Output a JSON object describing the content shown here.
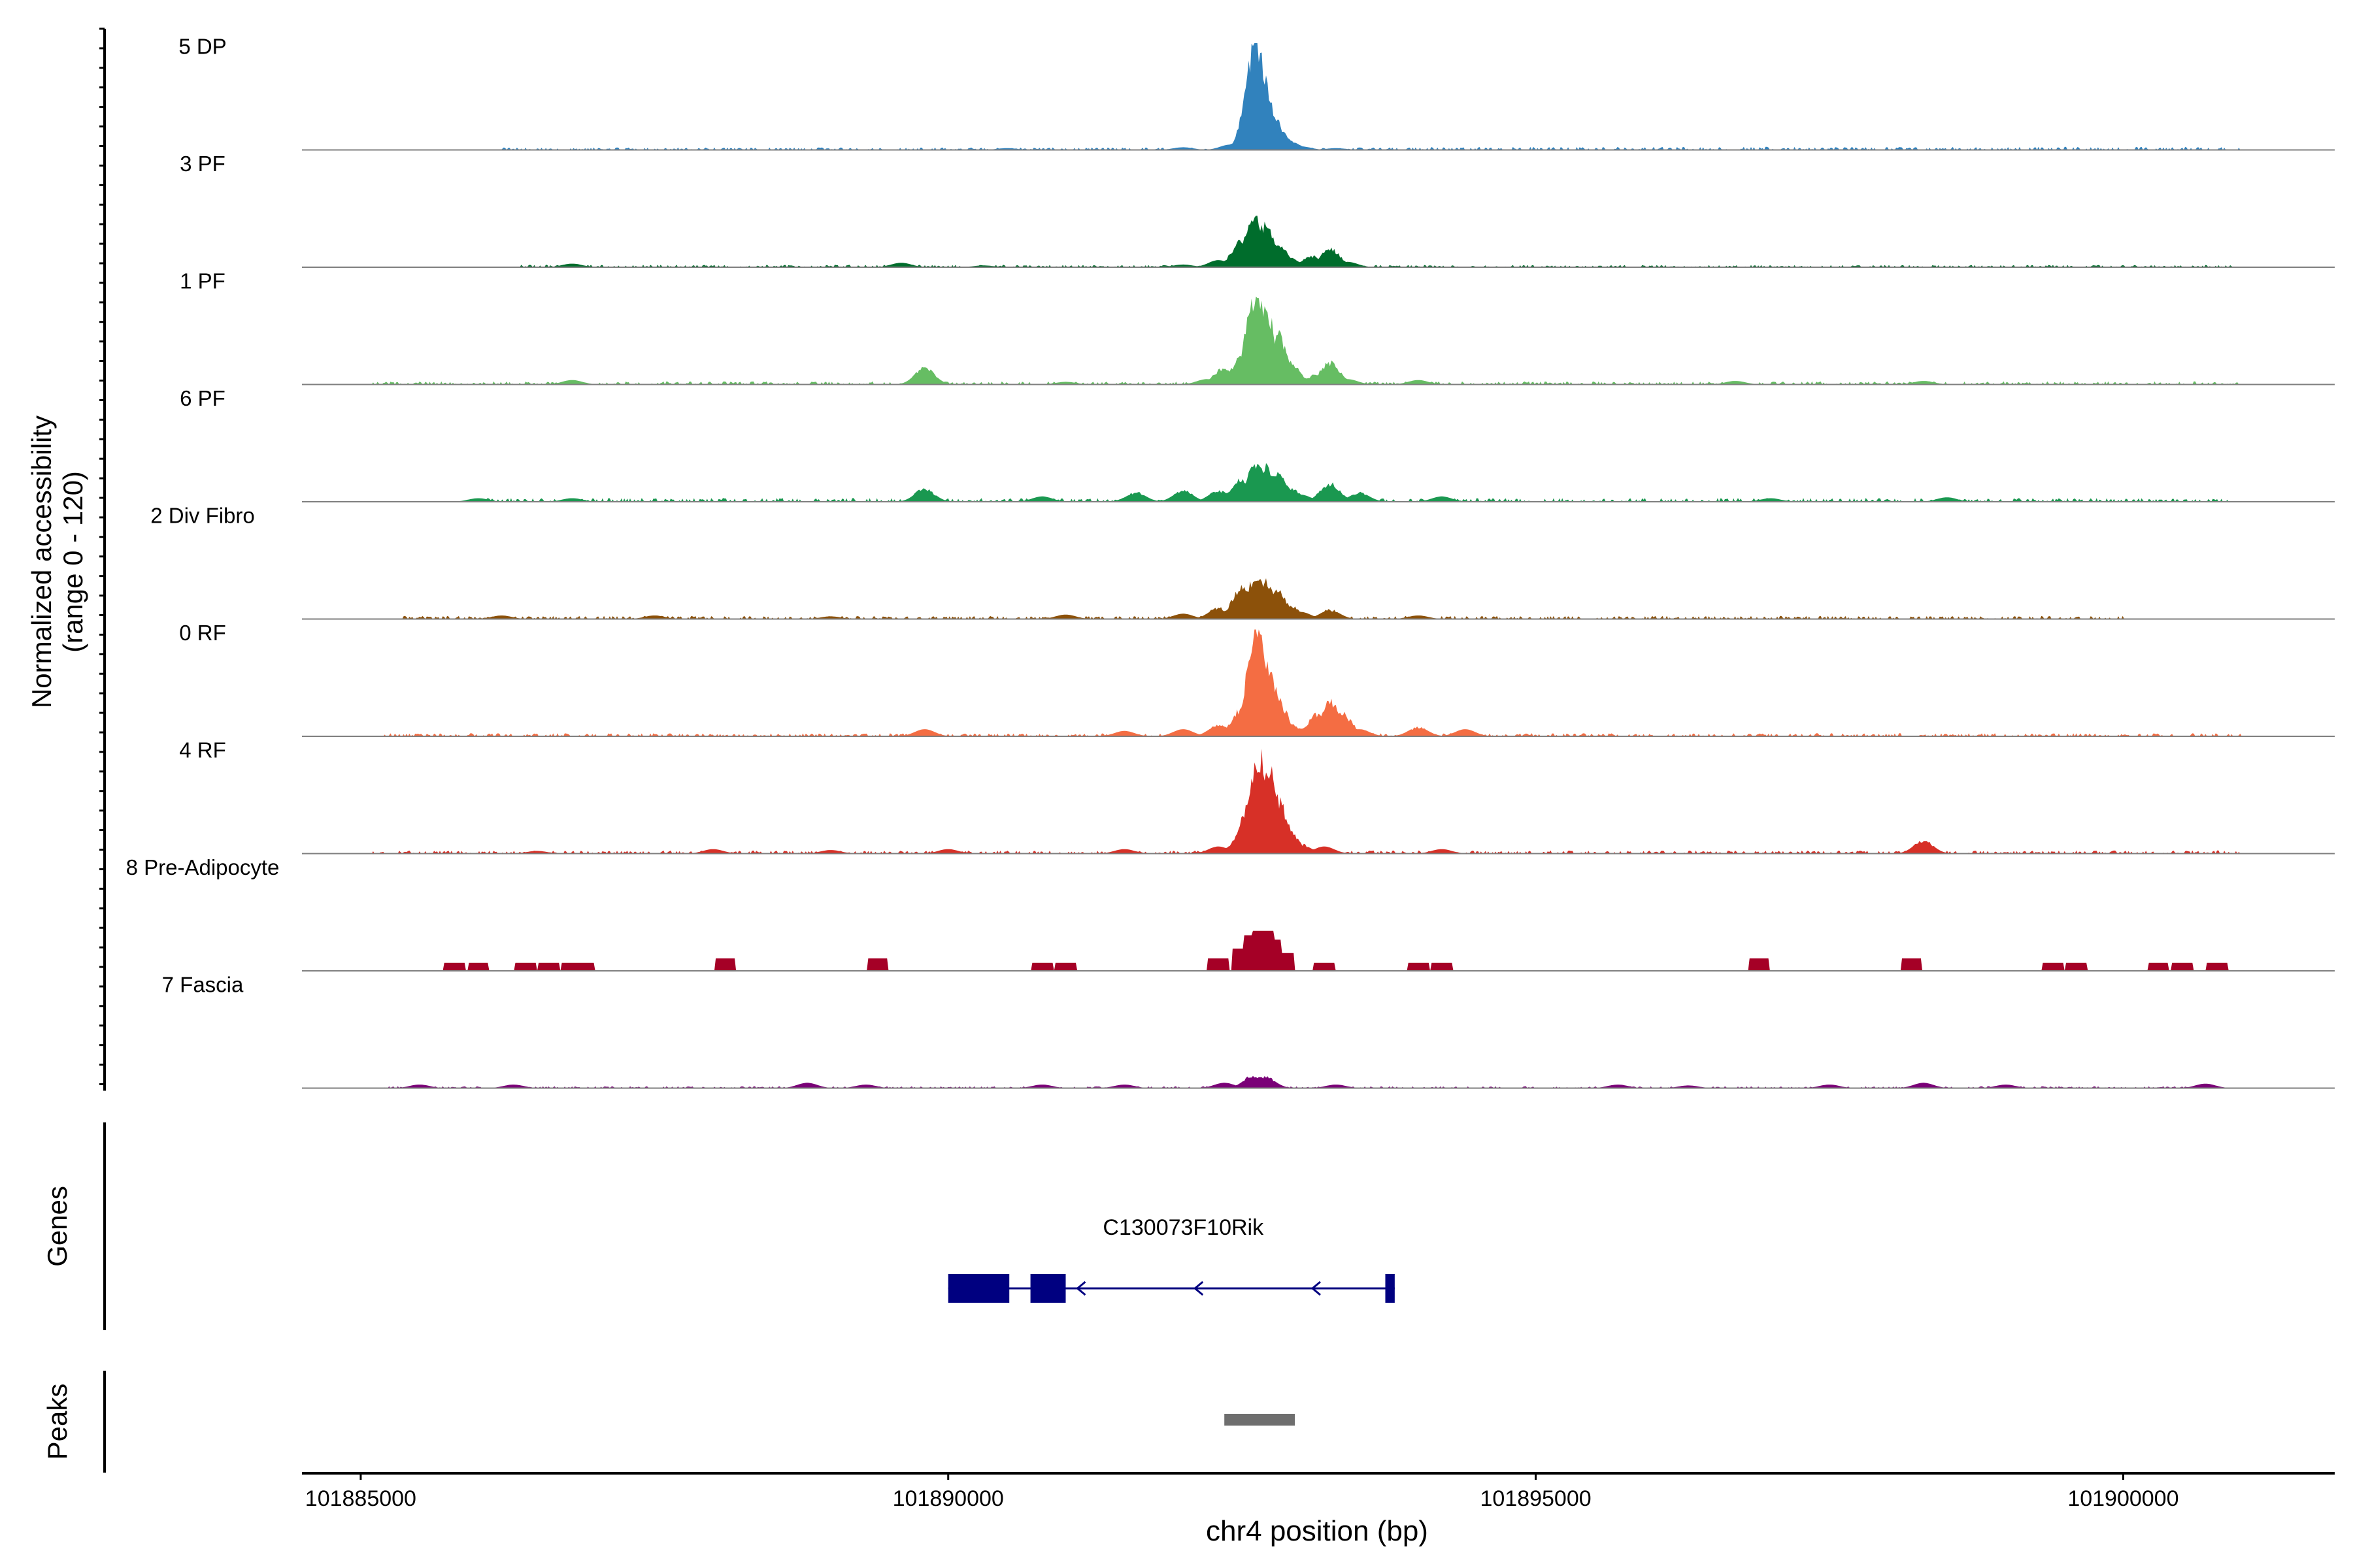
{
  "chart_data": {
    "type": "area",
    "y_axis": {
      "label_line1": "Normalized accessibility",
      "label_line2": "(range 0 - 120)",
      "ylim": [
        0,
        120
      ]
    },
    "x_axis": {
      "label": "chr4 position (bp)",
      "xlim": [
        101884500,
        101901800
      ],
      "ticks": [
        101885000,
        101890000,
        101895000,
        101900000
      ],
      "tick_labels": [
        "101885000",
        "101890000",
        "101895000",
        "101900000"
      ]
    },
    "series": [
      {
        "name": "5 DP",
        "color": "#3182bd",
        "peaks": [
          [
            101890500,
            2
          ],
          [
            101892000,
            3
          ],
          [
            101892400,
            6
          ],
          [
            101892540,
            22
          ],
          [
            101892580,
            45
          ],
          [
            101892620,
            120
          ],
          [
            101892660,
            90
          ],
          [
            101892700,
            60
          ],
          [
            101892750,
            40
          ],
          [
            101892800,
            25
          ],
          [
            101892900,
            10
          ],
          [
            101893000,
            4
          ],
          [
            101893300,
            2
          ]
        ],
        "noise": [
          [
            101886200,
            101893800,
            2
          ],
          [
            101893800,
            101901000,
            2.5
          ]
        ]
      },
      {
        "name": "3 PF",
        "color": "#006d2c",
        "peaks": [
          [
            101886800,
            4
          ],
          [
            101889600,
            5
          ],
          [
            101890300,
            2
          ],
          [
            101892000,
            3
          ],
          [
            101892300,
            8
          ],
          [
            101892500,
            30
          ],
          [
            101892600,
            55
          ],
          [
            101892700,
            45
          ],
          [
            101892800,
            25
          ],
          [
            101892900,
            10
          ],
          [
            101893100,
            12
          ],
          [
            101893250,
            20
          ],
          [
            101893400,
            6
          ]
        ],
        "noise": [
          [
            101886300,
            101890500,
            2
          ],
          [
            101890500,
            101901000,
            1.8
          ]
        ]
      },
      {
        "name": "1 PF",
        "color": "#66bd63",
        "peaks": [
          [
            101886800,
            5
          ],
          [
            101889800,
            18
          ],
          [
            101891000,
            3
          ],
          [
            101892200,
            6
          ],
          [
            101892350,
            18
          ],
          [
            101892500,
            30
          ],
          [
            101892620,
            100
          ],
          [
            101892700,
            80
          ],
          [
            101892800,
            55
          ],
          [
            101892900,
            25
          ],
          [
            101893000,
            8
          ],
          [
            101893150,
            12
          ],
          [
            101893250,
            24
          ],
          [
            101893400,
            6
          ],
          [
            101894000,
            5
          ],
          [
            101896700,
            4
          ],
          [
            101898300,
            4
          ]
        ],
        "noise": [
          [
            101885100,
            101901000,
            2.5
          ]
        ]
      },
      {
        "name": "6 PF",
        "color": "#1a9850",
        "peaks": [
          [
            101886000,
            4
          ],
          [
            101886800,
            4
          ],
          [
            101889800,
            14
          ],
          [
            101890800,
            6
          ],
          [
            101891600,
            10
          ],
          [
            101892000,
            12
          ],
          [
            101892300,
            12
          ],
          [
            101892500,
            25
          ],
          [
            101892620,
            40
          ],
          [
            101892700,
            38
          ],
          [
            101892800,
            30
          ],
          [
            101892900,
            15
          ],
          [
            101893000,
            8
          ],
          [
            101893250,
            20
          ],
          [
            101893500,
            10
          ],
          [
            101894200,
            6
          ],
          [
            101897000,
            4
          ],
          [
            101898500,
            5
          ]
        ],
        "noise": [
          [
            101885900,
            101900900,
            3
          ]
        ]
      },
      {
        "name": "2 Div Fibro",
        "color": "#8c510a",
        "peaks": [
          [
            101886200,
            4
          ],
          [
            101887500,
            4
          ],
          [
            101889000,
            3
          ],
          [
            101891000,
            5
          ],
          [
            101892000,
            6
          ],
          [
            101892300,
            12
          ],
          [
            101892500,
            35
          ],
          [
            101892620,
            45
          ],
          [
            101892700,
            40
          ],
          [
            101892800,
            30
          ],
          [
            101892900,
            15
          ],
          [
            101893000,
            8
          ],
          [
            101893250,
            10
          ],
          [
            101894000,
            4
          ]
        ],
        "noise": [
          [
            101885300,
            101900000,
            2.5
          ]
        ]
      },
      {
        "name": "0 RF",
        "color": "#f46d43",
        "peaks": [
          [
            101889800,
            8
          ],
          [
            101891500,
            6
          ],
          [
            101892000,
            8
          ],
          [
            101892300,
            12
          ],
          [
            101892500,
            30
          ],
          [
            101892600,
            70
          ],
          [
            101892630,
            120
          ],
          [
            101892680,
            90
          ],
          [
            101892720,
            70
          ],
          [
            101892800,
            40
          ],
          [
            101892900,
            15
          ],
          [
            101893000,
            10
          ],
          [
            101893150,
            25
          ],
          [
            101893250,
            38
          ],
          [
            101893350,
            25
          ],
          [
            101893500,
            8
          ],
          [
            101894000,
            10
          ],
          [
            101894400,
            8
          ]
        ],
        "noise": [
          [
            101885200,
            101901000,
            2.5
          ]
        ]
      },
      {
        "name": "4 RF",
        "color": "#d73027",
        "peaks": [
          [
            101886500,
            3
          ],
          [
            101888000,
            5
          ],
          [
            101889000,
            4
          ],
          [
            101890000,
            5
          ],
          [
            101891500,
            5
          ],
          [
            101892300,
            8
          ],
          [
            101892500,
            20
          ],
          [
            101892580,
            60
          ],
          [
            101892650,
            105
          ],
          [
            101892720,
            95
          ],
          [
            101892800,
            60
          ],
          [
            101892880,
            30
          ],
          [
            101893000,
            10
          ],
          [
            101893200,
            8
          ],
          [
            101894200,
            5
          ],
          [
            101898300,
            14
          ]
        ],
        "noise": [
          [
            101885100,
            101901000,
            2.5
          ]
        ]
      },
      {
        "name": "8 Pre-Adipocyte",
        "color": "#a50026",
        "peaks": [
          [
            101885800,
            9
          ],
          [
            101886000,
            9
          ],
          [
            101886400,
            9
          ],
          [
            101886600,
            9
          ],
          [
            101886800,
            9
          ],
          [
            101886900,
            9
          ],
          [
            101888100,
            14
          ],
          [
            101889400,
            14
          ],
          [
            101890800,
            9
          ],
          [
            101891000,
            9
          ],
          [
            101892300,
            14
          ],
          [
            101892500,
            25
          ],
          [
            101892600,
            40
          ],
          [
            101892680,
            45
          ],
          [
            101892750,
            35
          ],
          [
            101892850,
            20
          ],
          [
            101893200,
            9
          ],
          [
            101894000,
            9
          ],
          [
            101894200,
            9
          ],
          [
            101896900,
            14
          ],
          [
            101898200,
            14
          ],
          [
            101899400,
            9
          ],
          [
            101899600,
            9
          ],
          [
            101900300,
            9
          ],
          [
            101900500,
            9
          ],
          [
            101900800,
            9
          ]
        ],
        "noise": []
      },
      {
        "name": "7 Fascia",
        "color": "#7a0177",
        "peaks": [
          [
            101885500,
            4
          ],
          [
            101886300,
            4
          ],
          [
            101888800,
            6
          ],
          [
            101889300,
            4
          ],
          [
            101890800,
            4
          ],
          [
            101891500,
            4
          ],
          [
            101892350,
            6
          ],
          [
            101892600,
            14
          ],
          [
            101892700,
            12
          ],
          [
            101893300,
            4
          ],
          [
            101895700,
            4
          ],
          [
            101896300,
            3
          ],
          [
            101897500,
            4
          ],
          [
            101898300,
            6
          ],
          [
            101899000,
            4
          ],
          [
            101900700,
            5
          ]
        ],
        "noise": [
          [
            101885200,
            101900800,
            1.5
          ]
        ]
      }
    ],
    "genes": {
      "label": "Genes",
      "gene_name": "C130073F10Rik",
      "color": "#000080",
      "strand": "-",
      "start": 101890000,
      "end": 101893800,
      "exons": [
        [
          101890000,
          101890520
        ],
        [
          101890700,
          101891000
        ],
        [
          101893720,
          101893800
        ]
      ]
    },
    "peaks_track": {
      "label": "Peaks",
      "color": "#6e6e6e",
      "regions": [
        [
          101892350,
          101892950
        ]
      ]
    }
  }
}
